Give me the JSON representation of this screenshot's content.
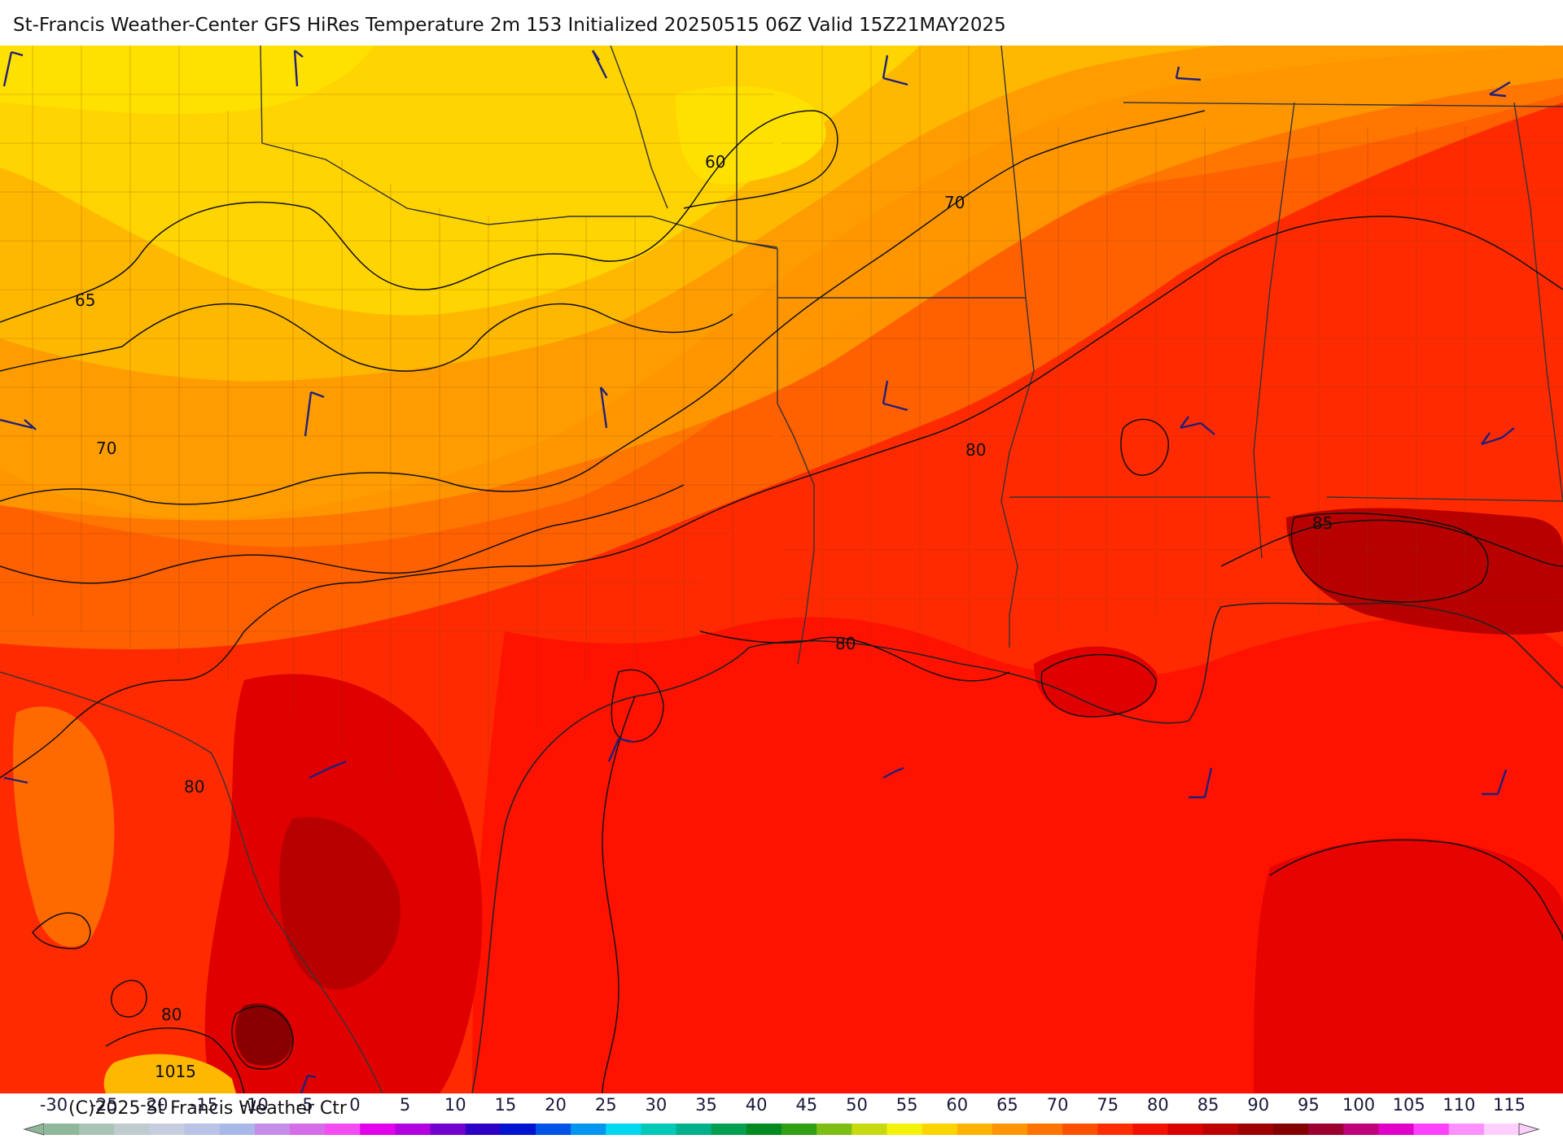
{
  "title": "St-Francis Weather-Center GFS HiRes Temperature 2m  153 Initialized 20250515 06Z Valid 15Z21MAY2025",
  "copyright": "(C)2025 St Francis Weather Ctr",
  "contour_labels": [
    "60",
    "65",
    "70",
    "70",
    "80",
    "80",
    "80",
    "80",
    "85",
    "1015"
  ],
  "colorbar": {
    "ticks": [
      "-30",
      "-25",
      "-20",
      "-15",
      "-10",
      "-5",
      "0",
      "5",
      "10",
      "15",
      "20",
      "25",
      "30",
      "35",
      "40",
      "45",
      "50",
      "55",
      "60",
      "65",
      "70",
      "75",
      "80",
      "85",
      "90",
      "95",
      "100",
      "105",
      "110",
      "115"
    ],
    "colors": [
      "#8fb79a",
      "#a9c4b5",
      "#bfcccf",
      "#c7cde0",
      "#b9c3e5",
      "#a8b8e8",
      "#c58ee8",
      "#d56ce8",
      "#f24cf2",
      "#e300ea",
      "#b200e0",
      "#7300cf",
      "#2d00c6",
      "#0014d2",
      "#0052e8",
      "#0096f0",
      "#00d8f0",
      "#00c9b8",
      "#00b08a",
      "#00a050",
      "#008a1f",
      "#2fa014",
      "#7ebe14",
      "#c7d90f",
      "#f2f20a",
      "#fcd500",
      "#ffb300",
      "#ff9500",
      "#ff7300",
      "#ff5000",
      "#ff2d00",
      "#f21000",
      "#d90000",
      "#bf0000",
      "#9e0000",
      "#840000",
      "#9c0030",
      "#c0007a",
      "#e000c8",
      "#ff40ff",
      "#ff90ff",
      "#ffd0ff"
    ]
  },
  "palette": {
    "t60": "#ffd400",
    "t65": "#ffb800",
    "t70": "#ff9a00",
    "t75": "#ff6a00",
    "t80": "#ff2a00",
    "t85": "#e00000",
    "t90": "#b80000",
    "t95": "#8a0000",
    "gulf": "#ff1200",
    "contour": "#111111",
    "border": "#333333",
    "barb": "#20207a"
  }
}
